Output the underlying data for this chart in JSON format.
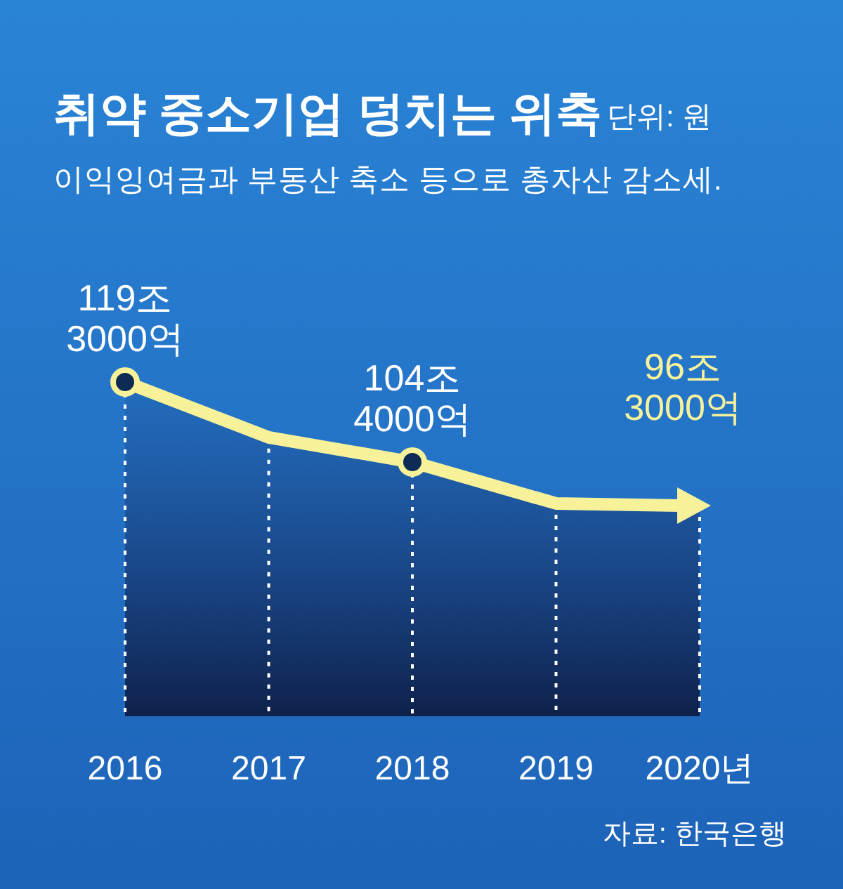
{
  "chart_data": {
    "type": "area",
    "title": "취약 중소기업 덩치는 위축",
    "subtitle": "이익잉여금과 부동산 축소 등으로 총자산 감소세.",
    "annotations": [
      "단위: 원",
      "자료: 한국은행"
    ],
    "categories": [
      "2016",
      "2017",
      "2018",
      "2019",
      "2020년"
    ],
    "series": [
      {
        "color": "#f7f29a",
        "values": [
          119.3,
          109,
          104.4,
          96.7,
          96.3
        ],
        "value_labels": [
          "119조\n3000억",
          null,
          "104조\n4000억",
          null,
          "96조\n3000억"
        ]
      }
    ],
    "ref_lines": [
      {
        "axis": "x",
        "value": "2016",
        "color": "#ffffff",
        "line_style": "dotted"
      },
      {
        "axis": "x",
        "value": "2017",
        "color": "#ffffff",
        "line_style": "dotted"
      },
      {
        "axis": "x",
        "value": "2018",
        "color": "#ffffff",
        "line_style": "dotted"
      },
      {
        "axis": "x",
        "value": "2019",
        "color": "#ffffff",
        "line_style": "dotted"
      },
      {
        "axis": "x",
        "value": "2020년",
        "color": "#ffffff",
        "line_style": "dotted"
      }
    ],
    "marker": "circle",
    "tick_labels": "x"
  }
}
